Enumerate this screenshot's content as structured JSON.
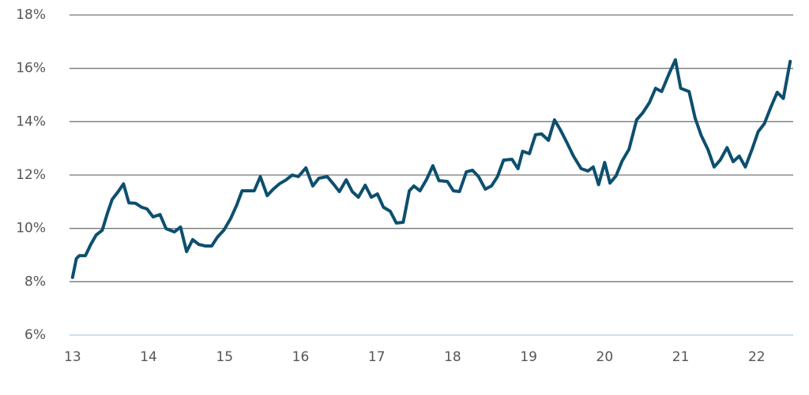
{
  "chart_data": {
    "type": "line",
    "x": [
      13.0,
      13.05,
      13.09,
      13.17,
      13.24,
      13.31,
      13.39,
      13.46,
      13.52,
      13.6,
      13.67,
      13.74,
      13.83,
      13.91,
      13.98,
      14.06,
      14.15,
      14.23,
      14.34,
      14.42,
      14.5,
      14.58,
      14.66,
      14.75,
      14.83,
      14.91,
      14.99,
      15.08,
      15.16,
      15.23,
      15.31,
      15.39,
      15.47,
      15.56,
      15.64,
      15.72,
      15.81,
      15.89,
      15.97,
      16.07,
      16.16,
      16.24,
      16.35,
      16.43,
      16.51,
      16.6,
      16.68,
      16.76,
      16.85,
      16.93,
      17.01,
      17.09,
      17.18,
      17.26,
      17.35,
      17.43,
      17.49,
      17.57,
      17.66,
      17.74,
      17.82,
      17.93,
      18.01,
      18.09,
      18.18,
      18.26,
      18.34,
      18.43,
      18.51,
      18.59,
      18.67,
      18.78,
      18.86,
      18.92,
      19.01,
      19.09,
      19.17,
      19.26,
      19.34,
      19.42,
      19.51,
      19.59,
      19.69,
      19.78,
      19.85,
      19.92,
      20.0,
      20.07,
      20.15,
      20.23,
      20.32,
      20.42,
      20.5,
      20.59,
      20.67,
      20.75,
      20.84,
      20.93,
      21.0,
      21.11,
      21.19,
      21.27,
      21.36,
      21.44,
      21.52,
      21.61,
      21.69,
      21.77,
      21.85,
      21.94,
      22.02,
      22.1,
      22.19,
      22.27,
      22.35,
      22.44
    ],
    "series": [
      {
        "color": "#0d4f6e",
        "values": [
          8.16,
          8.87,
          8.98,
          8.98,
          9.4,
          9.75,
          9.93,
          10.58,
          11.08,
          11.38,
          11.67,
          10.96,
          10.94,
          10.79,
          10.73,
          10.43,
          10.52,
          9.99,
          9.87,
          10.05,
          9.13,
          9.58,
          9.4,
          9.34,
          9.34,
          9.69,
          9.93,
          10.37,
          10.88,
          11.41,
          11.41,
          11.41,
          11.94,
          11.23,
          11.47,
          11.67,
          11.82,
          12.0,
          11.94,
          12.27,
          11.59,
          11.88,
          11.94,
          11.67,
          11.38,
          11.82,
          11.38,
          11.17,
          11.62,
          11.17,
          11.29,
          10.79,
          10.64,
          10.2,
          10.23,
          11.41,
          11.59,
          11.41,
          11.85,
          12.35,
          11.79,
          11.76,
          11.41,
          11.38,
          12.12,
          12.18,
          11.94,
          11.47,
          11.59,
          11.94,
          12.56,
          12.59,
          12.24,
          12.89,
          12.8,
          13.51,
          13.54,
          13.3,
          14.07,
          13.68,
          13.18,
          12.71,
          12.24,
          12.15,
          12.3,
          11.64,
          12.47,
          11.7,
          11.97,
          12.53,
          12.97,
          14.07,
          14.33,
          14.72,
          15.25,
          15.13,
          15.75,
          16.32,
          15.25,
          15.13,
          14.13,
          13.48,
          12.95,
          12.3,
          12.56,
          13.03,
          12.5,
          12.71,
          12.3,
          12.97,
          13.63,
          13.92,
          14.57,
          15.1,
          14.87,
          16.26
        ]
      }
    ],
    "xlim": [
      12.96,
      22.48
    ],
    "xticks": [
      13,
      14,
      15,
      16,
      17,
      18,
      19,
      20,
      21,
      22
    ],
    "ylim": [
      6,
      18
    ],
    "yticks": [
      {
        "value": 6,
        "label": "6%"
      },
      {
        "value": 8,
        "label": "8%"
      },
      {
        "value": 10,
        "label": "10%"
      },
      {
        "value": 12,
        "label": "12%"
      },
      {
        "value": 14,
        "label": "14%"
      },
      {
        "value": 16,
        "label": "16%"
      },
      {
        "value": 18,
        "label": "18%"
      }
    ],
    "grid": true
  }
}
